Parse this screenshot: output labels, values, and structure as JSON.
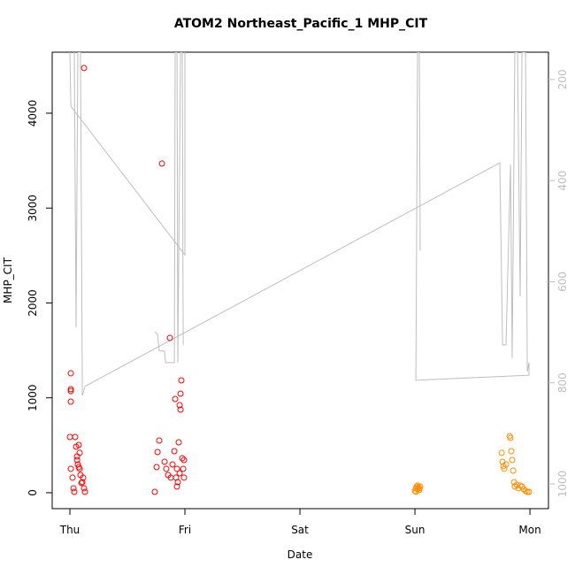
{
  "chart_data": {
    "type": "scatter",
    "title": "ATOM2 Northeast_Pacific_1 MHP_CIT",
    "x_label": "Date",
    "y_label": "MHP_CIT",
    "xlim": [
      -0.154,
      4.161
    ],
    "xticks": [
      {
        "value": 0,
        "label": "Thu"
      },
      {
        "value": 1,
        "label": "Fri"
      },
      {
        "value": 2,
        "label": "Sat"
      },
      {
        "value": 3,
        "label": "Sun"
      },
      {
        "value": 4,
        "label": "Mon"
      }
    ],
    "ylim": [
      -168,
      4643
    ],
    "yticks": [
      0,
      1000,
      2000,
      3000,
      4000
    ],
    "y2lim": [
      1049,
      146
    ],
    "y2ticks": [
      200,
      400,
      600,
      800,
      1000
    ],
    "y2_color": "#bebebe",
    "series": [
      {
        "color": "#ff0000",
        "x": [
          0.008,
          0.008,
          0.008,
          0.008,
          0,
          0.008,
          0.023,
          0.031,
          0.038,
          0.046,
          0.054,
          0.062,
          0.069,
          0.077,
          0.085,
          0.085,
          0.092,
          0.1,
          0.108,
          0.115,
          0.123,
          0.131,
          0.123,
          0.062,
          0.077,
          0.738,
          0.762,
          0.777,
          0.754,
          0.8,
          0.823,
          0.838,
          0.854,
          0.869,
          0.877,
          0.892,
          0.908,
          0.915,
          0.931,
          0.931,
          0.938,
          0.946,
          0.954,
          0.962,
          0.962,
          0.969,
          0.977,
          0.985,
          0.992,
          0.992,
          0.954,
          0.923
        ],
        "values": [
          1259,
          1091,
          1072,
          960,
          587,
          252,
          159,
          47,
          9,
          587,
          485,
          345,
          298,
          503,
          420,
          252,
          186,
          103,
          112,
          159,
          47,
          9,
          4476,
          382,
          270,
          9,
          429,
          550,
          270,
          3469,
          326,
          252,
          186,
          1632,
          159,
          298,
          438,
          988,
          252,
          65,
          112,
          531,
          923,
          1044,
          876,
          1184,
          364,
          252,
          345,
          159,
          205,
          159
        ]
      },
      {
        "color": "#ff8c00",
        "x": [
          3.0,
          3.008,
          3.015,
          3.023,
          3.031,
          3.038,
          3.046,
          3.008,
          3.023,
          3.038,
          3.754,
          3.762,
          3.777,
          3.792,
          3.823,
          3.831,
          3.838,
          3.846,
          3.854,
          3.862,
          3.869,
          3.885,
          3.9,
          3.915,
          3.931,
          3.946,
          3.962,
          3.977,
          3.992,
          3.769
        ],
        "values": [
          19,
          47,
          65,
          37,
          56,
          28,
          65,
          9,
          75,
          47,
          420,
          326,
          252,
          298,
          597,
          578,
          438,
          345,
          233,
          112,
          65,
          84,
          47,
          75,
          65,
          37,
          19,
          9,
          9,
          280
        ]
      },
      {
        "type": "line",
        "axis": "y2",
        "color": "#bebebe",
        "x": [
          0,
          0.008,
          1,
          1,
          null,
          0.038,
          0.054,
          0.069,
          0.092,
          0.108,
          0.131,
          3.738,
          3.762,
          3.792,
          3.831,
          3.846,
          3.869,
          3.892,
          3.915,
          3.931,
          3.962,
          3.977,
          3.992,
          3.992,
          3.008,
          3.023,
          3.038,
          3.046,
          null,
          0.738,
          0.762,
          0.777,
          0.823,
          0.831,
          0.908,
          0.915,
          0.931,
          0.938,
          0.962,
          0.977,
          0.985
        ],
        "values": [
          146,
          253,
          547,
          146,
          null,
          146,
          690,
          146,
          146,
          825,
          807,
          365,
          725,
          725,
          368,
          751,
          146,
          146,
          629,
          146,
          146,
          778,
          760,
          785,
          795,
          146,
          146,
          538,
          null,
          699,
          704,
          737,
          737,
          760,
          760,
          146,
          146,
          760,
          146,
          146,
          725
        ]
      }
    ]
  }
}
